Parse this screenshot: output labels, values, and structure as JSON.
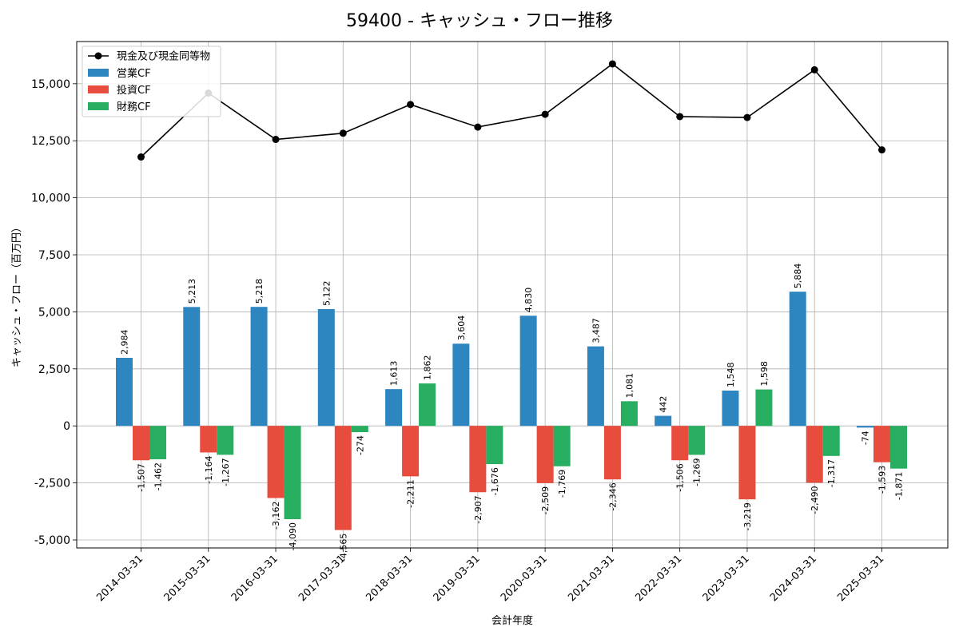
{
  "chart_data": {
    "type": "bar",
    "title": "59400 - キャッシュ・フロー推移",
    "xlabel": "会計年度",
    "ylabel": "キャッシュ・フロー（百万円）",
    "categories": [
      "2014-03-31",
      "2015-03-31",
      "2016-03-31",
      "2017-03-31",
      "2018-03-31",
      "2019-03-31",
      "2020-03-31",
      "2021-03-31",
      "2022-03-31",
      "2023-03-31",
      "2024-03-31",
      "2025-03-31"
    ],
    "series": [
      {
        "name": "営業CF",
        "type": "bar",
        "color": "#2e86c1",
        "values": [
          2984,
          5213,
          5218,
          5122,
          1613,
          3604,
          4830,
          3487,
          442,
          1548,
          5884,
          -74
        ]
      },
      {
        "name": "投資CF",
        "type": "bar",
        "color": "#e74c3c",
        "values": [
          -1507,
          -1164,
          -3162,
          -4565,
          -2211,
          -2907,
          -2509,
          -2346,
          -1506,
          -3219,
          -2490,
          -1593
        ]
      },
      {
        "name": "財務CF",
        "type": "bar",
        "color": "#27ae60",
        "values": [
          -1462,
          -1267,
          -4090,
          -274,
          1862,
          -1676,
          -1769,
          1081,
          -1269,
          1598,
          -1317,
          -1871
        ]
      },
      {
        "name": "現金及び現金同等物",
        "type": "line",
        "color": "#000000",
        "values": [
          11790,
          14590,
          12560,
          12830,
          14090,
          13100,
          13660,
          15870,
          13560,
          13520,
          15610,
          12100
        ]
      }
    ],
    "ylim": [
      -5350,
      16850
    ],
    "yticks": [
      -5000,
      -2500,
      0,
      2500,
      5000,
      7500,
      10000,
      12500,
      15000
    ],
    "ytick_labels": [
      "-5,000",
      "-2,500",
      "0",
      "2,500",
      "5,000",
      "7,500",
      "10,000",
      "12,500",
      "15,000"
    ],
    "bar_labels": [
      [
        "2,984",
        "5,213",
        "5,218",
        "5,122",
        "1,613",
        "3,604",
        "4,830",
        "3,487",
        "442",
        "1,548",
        "5,884",
        "-74"
      ],
      [
        "-1,507",
        "-1,164",
        "-3,162",
        "-4,565",
        "-2,211",
        "-2,907",
        "-2,509",
        "-2,346",
        "-1,506",
        "-3,219",
        "-2,490",
        "-1,593"
      ],
      [
        "-1,462",
        "-1,267",
        "-4,090",
        "-274",
        "1,862",
        "-1,676",
        "-1,769",
        "1,081",
        "-1,269",
        "1,598",
        "-1,317",
        "-1,871"
      ]
    ],
    "grid": true,
    "legend_position": "top-left"
  }
}
